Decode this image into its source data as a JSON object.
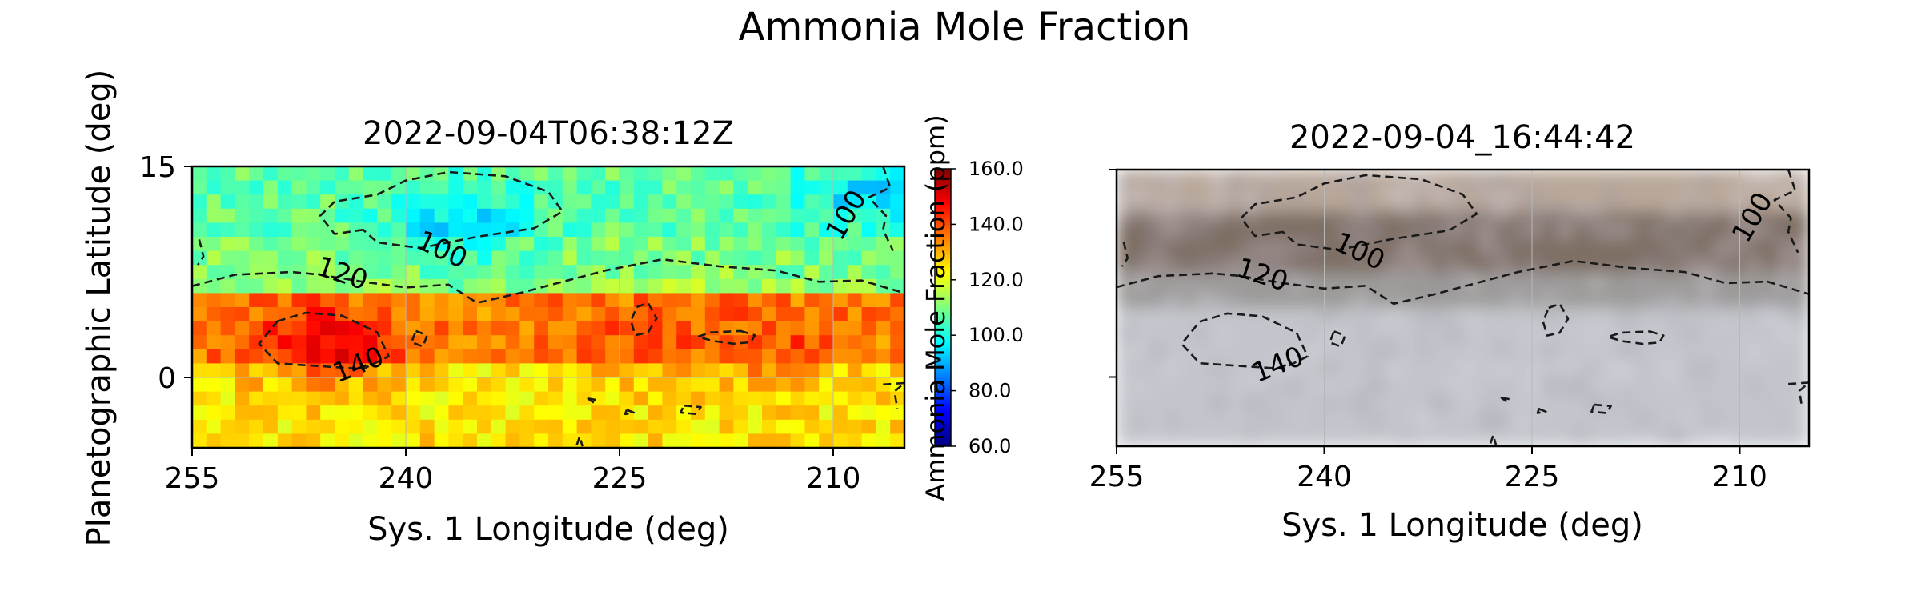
{
  "figure": {
    "suptitle": "Ammonia Mole Fraction"
  },
  "colors": {
    "contour": "#1a1a1a",
    "gridline": "#b8b8b8",
    "colormap": [
      "#00007f",
      "#0000ff",
      "#007fff",
      "#00ffff",
      "#7fff7f",
      "#ffff00",
      "#ff7f00",
      "#ff0000",
      "#7f0000"
    ]
  },
  "chart_data": [
    {
      "type": "heatmap",
      "title": "2022-09-04T06:38:12Z",
      "xlabel": "Sys. 1 Longitude (deg)",
      "ylabel": "Planetographic Latitude (deg)",
      "xlim": [
        255,
        205
      ],
      "ylim": [
        -5,
        15
      ],
      "xticks": [
        255,
        240,
        225,
        210
      ],
      "xtick_labels": [
        "255",
        "240",
        "225",
        "210"
      ],
      "yticks": [
        15,
        0
      ],
      "ytick_labels": [
        "15",
        "0"
      ],
      "grid": true,
      "colorscale": {
        "vmin": 60,
        "vmax": 160,
        "cmap": "jet"
      },
      "field": {
        "description": "ammonia mole fraction (ppm) by latitude band",
        "bands": [
          {
            "lat": [
              10,
              15
            ],
            "value": 107
          },
          {
            "lat": [
              6,
              10
            ],
            "value": 110
          },
          {
            "lat": [
              1,
              6
            ],
            "value": 135
          },
          {
            "lat": [
              -5,
              1
            ],
            "value": 125
          }
        ],
        "features": [
          {
            "lon": 246,
            "lat": 2.5,
            "value": 150
          },
          {
            "lon": 236,
            "lat": 11,
            "value": 95
          },
          {
            "lon": 223,
            "lat": 3,
            "value": 140
          },
          {
            "lon": 214,
            "lat": 2.5,
            "value": 140
          },
          {
            "lon": 208,
            "lat": 13,
            "value": 95
          }
        ]
      },
      "contours": [
        {
          "level": 100,
          "label": "100"
        },
        {
          "level": 120,
          "label": "120"
        },
        {
          "level": 140,
          "label": "140"
        }
      ]
    },
    {
      "type": "heatmap",
      "title": "2022-09-04_16:44:42",
      "xlabel": "Sys. 1 Longitude (deg)",
      "ylabel": "",
      "xlim": [
        255,
        205
      ],
      "ylim": [
        -5,
        15
      ],
      "xticks": [
        255,
        240,
        225,
        210
      ],
      "xtick_labels": [
        "255",
        "240",
        "225",
        "210"
      ],
      "yticks": [
        15,
        0
      ],
      "ytick_labels": [
        "",
        ""
      ],
      "grid": true,
      "background": "visible-light image",
      "contours": [
        {
          "level": 100,
          "label": "100"
        },
        {
          "level": 120,
          "label": "120"
        },
        {
          "level": 140,
          "label": "140"
        }
      ]
    }
  ],
  "colorbar": {
    "label": "Ammonia Mole Fraction (ppm)",
    "ticks": [
      60.0,
      80.0,
      100.0,
      120.0,
      140.0,
      160.0
    ],
    "tick_labels": [
      "60.0",
      "80.0",
      "100.0",
      "120.0",
      "140.0",
      "160.0"
    ],
    "range": [
      60,
      160
    ]
  }
}
